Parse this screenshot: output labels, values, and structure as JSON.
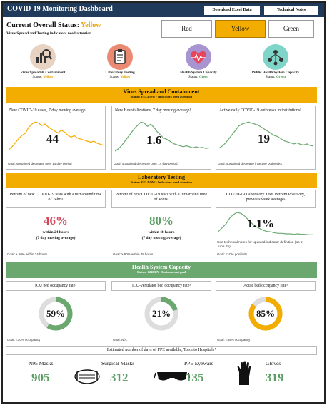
{
  "header": {
    "title": "COVID-19 Monitoring Dashboard",
    "download_label": "Download Excel Data",
    "notes_label": "Technical Notes"
  },
  "overall": {
    "label": "Current Overall Status:",
    "value": "Yellow",
    "subtitle": "Virus Spread and Testing indicators need attention"
  },
  "status_buttons": [
    "Red",
    "Yellow",
    "Green"
  ],
  "colors": {
    "navy": "#1f3a5a",
    "yellow": "#f2ad00",
    "green": "#6aa870",
    "red": "#d5485c",
    "ring_gray": "#dddddd"
  },
  "categories": [
    {
      "label": "Virus Spread & Containment",
      "status_label": "Status:",
      "status": "Yellow",
      "icon": "bar-chart-magnifier-icon"
    },
    {
      "label": "Laboratory Testing",
      "status_label": "Status:",
      "status": "Yellow",
      "icon": "clipboard-icon"
    },
    {
      "label": "Health System Capacity",
      "status_label": "Status:",
      "status": "Green",
      "icon": "heart-pulse-icon"
    },
    {
      "label": "Public Health System Capacity",
      "status_label": "Status:",
      "status": "Green",
      "icon": "people-network-icon"
    }
  ],
  "sections": {
    "virus": {
      "title": "Virus Spread and Containment",
      "status": "Status: YELLOW - Indicators need attention",
      "cards": [
        {
          "header": "New COVID-19 cases, 7 day moving average¹",
          "value": "44",
          "goal": "Goal: sustained decrease over 14 day period"
        },
        {
          "header": "New Hospitalizations, 7 day moving average¹",
          "value": "1.6",
          "goal": "Goal: sustained decrease over 14 day period"
        },
        {
          "header": "Active daily COVID-19 outbreaks in institutions¹",
          "value": "19",
          "goal": "Goal: sustained decrease in active outbreaks"
        }
      ]
    },
    "lab": {
      "title": "Laboratory Testing",
      "status": "Status: YELLOW - Indicators need attention",
      "cards": [
        {
          "header": "Percent of new COVID-19 tests with a turnaround time of 24hrs¹",
          "value": "46%",
          "line1": "within 24 hours",
          "line2": "(7 day moving average)",
          "goal": "Goal: ≥ 60% within 24 hours"
        },
        {
          "header": "Percent of new COVID-19 tests with a turnaround time of 48hrs¹",
          "value": "80%",
          "line1": "within 48 hours",
          "line2": "(7 day moving average)",
          "goal": "Goal: ≥ 80% within 48 hours"
        },
        {
          "header": "COVID-19 Laboratory Tests Percent Positivity, previous week average²",
          "value": "1.1%",
          "note": "See technical notes for updated indicator definition (as of June 15)",
          "goal": "Goal: <10% positivity"
        }
      ]
    },
    "health": {
      "title": "Health System Capacity",
      "status": "Status: GREEN - Indicators at goal",
      "cards": [
        {
          "header": "ICU bed occupancy rate³",
          "value": "59%",
          "fraction": 0.59,
          "color": "#6aa870",
          "goal": "Goal: <70% occupancy"
        },
        {
          "header": "ICU-ventilator bed occupancy rate³",
          "value": "21%",
          "fraction": 0.21,
          "color": "#6aa870",
          "goal": "Goal: N/A"
        },
        {
          "header": "Acute bed occupancy rate³",
          "value": "85%",
          "fraction": 0.85,
          "color": "#f2ad00",
          "goal": "Goal: <85% occupancy"
        }
      ]
    }
  },
  "ppe": {
    "title": "Estimated number of days of PPE available, Toronto Hospitals⁴",
    "items": [
      {
        "name": "N95 Masks",
        "value": "905",
        "icon": "none"
      },
      {
        "name": "Surgical Masks",
        "value": "312",
        "icon": "surgical-mask-icon"
      },
      {
        "name": "PPE Eyeware",
        "value": "135",
        "icon": "goggles-icon"
      },
      {
        "name": "Gloves",
        "value": "319",
        "icon": "glove-icon"
      }
    ]
  },
  "chart_data": [
    {
      "type": "area",
      "series": [
        {
          "values": [
            8,
            14,
            22,
            30,
            36,
            40,
            52,
            58,
            62,
            60,
            55,
            58,
            52,
            48,
            44,
            40,
            46,
            42,
            36,
            32,
            35,
            30,
            28,
            26,
            24,
            22,
            24,
            20,
            18,
            16
          ]
        }
      ],
      "color": "#f2ad00"
    },
    {
      "type": "area",
      "series": [
        {
          "values": [
            4,
            8,
            14,
            22,
            30,
            38,
            46,
            52,
            58,
            56,
            50,
            54,
            48,
            40,
            34,
            28,
            26,
            22,
            18,
            16,
            14,
            12,
            14,
            12,
            10,
            12,
            10,
            11,
            9,
            10
          ]
        }
      ],
      "color": "#6aa870"
    },
    {
      "type": "area",
      "series": [
        {
          "values": [
            10,
            14,
            20,
            28,
            36,
            44,
            52,
            56,
            58,
            60,
            58,
            56,
            54,
            50,
            46,
            42,
            38,
            34,
            32,
            28,
            24,
            22,
            20,
            18,
            20,
            17,
            16,
            18,
            15,
            14
          ]
        }
      ],
      "color": "#6aa870"
    },
    {
      "type": "line",
      "series": [
        {
          "values": [
            20,
            28,
            36,
            48,
            56,
            60,
            58,
            52,
            44,
            36,
            30,
            26,
            22,
            20,
            19,
            17,
            16,
            16,
            15,
            15,
            14,
            15,
            14,
            14,
            13,
            13
          ]
        }
      ],
      "color": "#6aa870"
    }
  ]
}
